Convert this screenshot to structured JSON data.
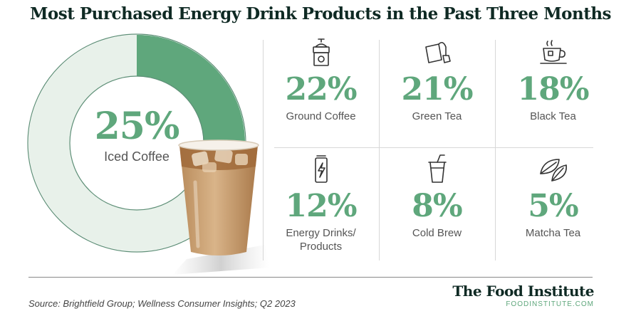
{
  "title": "Most Purchased Energy Drink Products in the Past Three Months",
  "colors": {
    "accent": "#5fa77c",
    "ring_rest": "#e8f1ea",
    "ring_outline": "#5e8f77",
    "dark": "#0f2a24"
  },
  "chart_data": {
    "type": "table",
    "highlight": {
      "category": "Iced Coffee",
      "value": 25,
      "display": "25%"
    },
    "categories": [
      "Ground Coffee",
      "Green Tea",
      "Black Tea",
      "Energy Drinks/ Products",
      "Cold Brew",
      "Matcha Tea"
    ],
    "values": [
      22,
      21,
      18,
      12,
      8,
      5
    ],
    "items": [
      {
        "label": "Ground Coffee",
        "value": 22,
        "display": "22%",
        "icon": "coffee-grinder-icon"
      },
      {
        "label": "Green Tea",
        "value": 21,
        "display": "21%",
        "icon": "tea-bag-icon"
      },
      {
        "label": "Black Tea",
        "value": 18,
        "display": "18%",
        "icon": "tea-cup-icon"
      },
      {
        "label": "Energy Drinks/",
        "label2": "Products",
        "value": 12,
        "display": "12%",
        "icon": "energy-can-icon"
      },
      {
        "label": "Cold Brew",
        "value": 8,
        "display": "8%",
        "icon": "cold-brew-cup-icon"
      },
      {
        "label": "Matcha Tea",
        "value": 5,
        "display": "5%",
        "icon": "matcha-leaves-icon"
      }
    ]
  },
  "footer": {
    "source": "Source: Brightfield Group; Wellness Consumer Insights; Q2 2023",
    "brand": "The Food Institute",
    "url": "FOODINSTITUTE.COM"
  }
}
